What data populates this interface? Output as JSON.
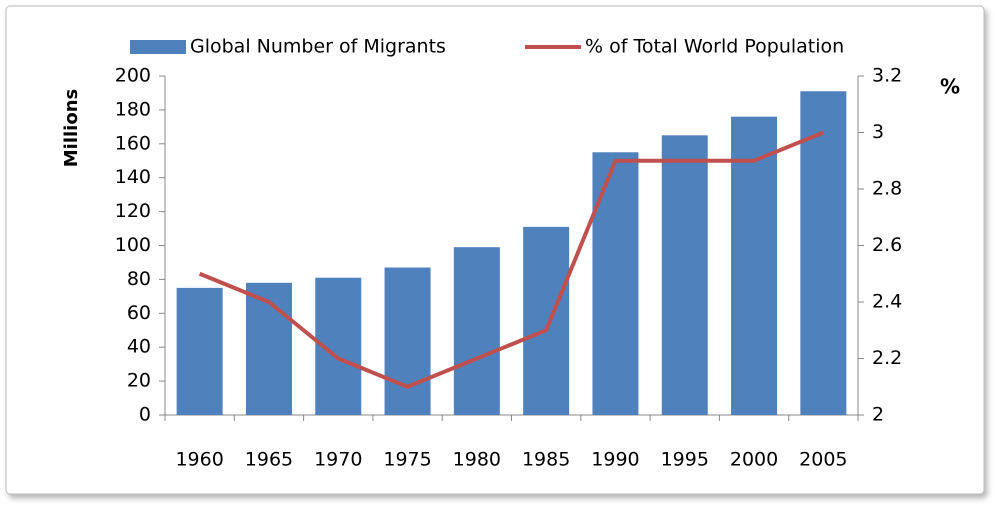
{
  "chart_data": {
    "type": "bar_line",
    "categories": [
      "1960",
      "1965",
      "1970",
      "1975",
      "1980",
      "1985",
      "1990",
      "1995",
      "2000",
      "2005"
    ],
    "series": [
      {
        "name": "Global Number of Migrants",
        "type": "bar",
        "color": "#4f81bd",
        "values": [
          75,
          78,
          81,
          87,
          99,
          111,
          155,
          165,
          176,
          191
        ]
      },
      {
        "name": "% of Total World Population",
        "type": "line",
        "color": "#c0504d",
        "axis": "y2",
        "values": [
          2.5,
          2.4,
          2.2,
          2.1,
          2.2,
          2.3,
          2.9,
          2.9,
          2.9,
          3.0
        ]
      }
    ],
    "ylabel": "Millions",
    "y2label": "%",
    "ylim": [
      0,
      200
    ],
    "yticks": [
      0,
      20,
      40,
      60,
      80,
      100,
      120,
      140,
      160,
      180,
      200
    ],
    "y2lim": [
      2,
      3.2
    ],
    "y2ticks": [
      2,
      2.2,
      2.4,
      2.6,
      2.8,
      3,
      3.2
    ],
    "legend": "top"
  }
}
